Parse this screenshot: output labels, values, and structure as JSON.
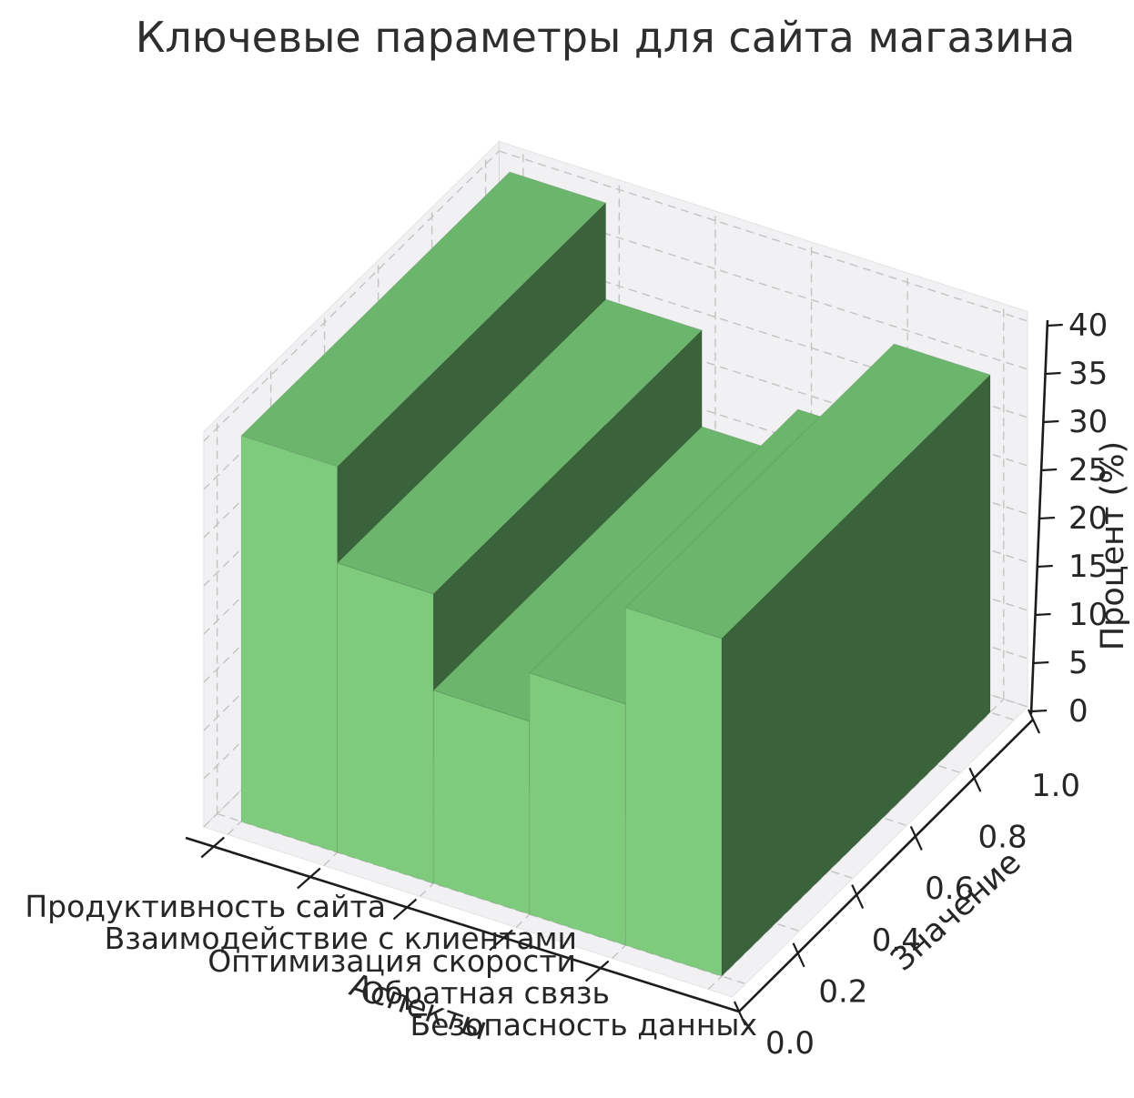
{
  "title": "Ключевые параметры для сайта магазина",
  "chart_data": {
    "type": "bar3d",
    "title": "Ключевые параметры для сайта магазина",
    "xlabel": "Аспекты",
    "ylabel": "Значение",
    "zlabel": "Процент (%)",
    "categories": [
      "Продуктивность сайта",
      "Взаимодействие с клиентами",
      "Оптимизация скорости",
      "Обратная связь",
      "Безопасность данных"
    ],
    "values": [
      40,
      30,
      20,
      25,
      35
    ],
    "y_ticks": [
      "0.0",
      "0.2",
      "0.4",
      "0.6",
      "0.8",
      "1.0"
    ],
    "z_ticks": [
      "0",
      "5",
      "10",
      "15",
      "20",
      "25",
      "30",
      "35",
      "40"
    ],
    "ylim": [
      0.0,
      1.0
    ],
    "zlim": [
      0,
      40
    ],
    "grid": true,
    "legend": false,
    "colors": {
      "bar_front": "#7ecb7e",
      "bar_top": "#6cb56c",
      "bar_side": "#3b633b",
      "pane": "#f1f1f3",
      "gridline": "#c3c3c3",
      "axis": "#1c1c1c",
      "text": "#262626"
    }
  }
}
